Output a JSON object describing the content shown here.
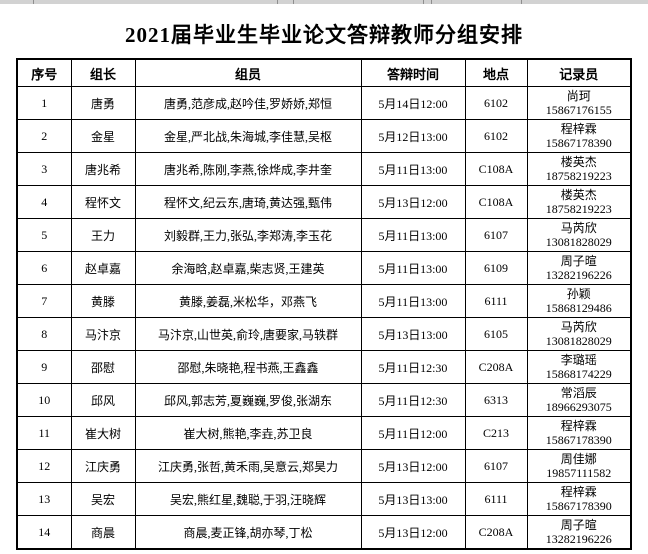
{
  "title": "2021届毕业生毕业论文答辩教师分组安排",
  "table": {
    "headers": [
      "序号",
      "组长",
      "组员",
      "答辩时间",
      "地点",
      "记录员"
    ],
    "rows": [
      {
        "no": "1",
        "leader": "唐勇",
        "members": "唐勇,范彦成,赵吟佳,罗娇娇,郑恒",
        "time": "5月14日12:00",
        "location": "6102",
        "recorder_name": "尚珂",
        "recorder_phone": "15867176155"
      },
      {
        "no": "2",
        "leader": "金星",
        "members": "金星,严北战,朱海城,李佳慧,吴枢",
        "time": "5月12日13:00",
        "location": "6102",
        "recorder_name": "程梓霖",
        "recorder_phone": "15867178390"
      },
      {
        "no": "3",
        "leader": "唐兆希",
        "members": "唐兆希,陈刚,李燕,徐烨成,李井奎",
        "time": "5月11日13:00",
        "location": "C108A",
        "recorder_name": "楼英杰",
        "recorder_phone": "18758219223"
      },
      {
        "no": "4",
        "leader": "程怀文",
        "members": "程怀文,纪云东,唐琦,黄达强,甄伟",
        "time": "5月13日12:00",
        "location": "C108A",
        "recorder_name": "楼英杰",
        "recorder_phone": "18758219223"
      },
      {
        "no": "5",
        "leader": "王力",
        "members": "刘毅群,王力,张弘,李郑涛,李玉花",
        "time": "5月11日13:00",
        "location": "6107",
        "recorder_name": "马芮欣",
        "recorder_phone": "13081828029"
      },
      {
        "no": "6",
        "leader": "赵卓嘉",
        "members": "余海晗,赵卓嘉,柴志贤,王建英",
        "time": "5月11日13:00",
        "location": "6109",
        "recorder_name": "周子暄",
        "recorder_phone": "13282196226"
      },
      {
        "no": "7",
        "leader": "黄滕",
        "members": "黄滕,姜磊,米松华，邓燕飞",
        "time": "5月11日13:00",
        "location": "6111",
        "recorder_name": "孙颖",
        "recorder_phone": "15868129486"
      },
      {
        "no": "8",
        "leader": "马汴京",
        "members": "马汴京,山世英,俞玲,唐要家,马轶群",
        "time": "5月13日13:00",
        "location": "6105",
        "recorder_name": "马芮欣",
        "recorder_phone": "13081828029"
      },
      {
        "no": "9",
        "leader": "邵慰",
        "members": "邵慰,朱晓艳,程书燕,王鑫鑫",
        "time": "5月11日12:30",
        "location": "C208A",
        "recorder_name": "李璐瑶",
        "recorder_phone": "15868174229"
      },
      {
        "no": "10",
        "leader": "邱风",
        "members": "邱风,郭志芳,夏巍巍,罗俊,张湖东",
        "time": "5月11日12:30",
        "location": "6313",
        "recorder_name": "常滔辰",
        "recorder_phone": "18966293075"
      },
      {
        "no": "11",
        "leader": "崔大树",
        "members": "崔大树,熊艳,李垚,苏卫良",
        "time": "5月11日12:00",
        "location": "C213",
        "recorder_name": "程梓霖",
        "recorder_phone": "15867178390"
      },
      {
        "no": "12",
        "leader": "江庆勇",
        "members": "江庆勇,张哲,黄禾雨,吴意云,郑昊力",
        "time": "5月13日12:00",
        "location": "6107",
        "recorder_name": "周佳娜",
        "recorder_phone": "19857111582"
      },
      {
        "no": "13",
        "leader": "吴宏",
        "members": "吴宏,熊红星,魏聪,于羽,汪晓辉",
        "time": "5月13日13:00",
        "location": "6111",
        "recorder_name": "程梓霖",
        "recorder_phone": "15867178390"
      },
      {
        "no": "14",
        "leader": "商晨",
        "members": "商晨,麦正锋,胡亦琴,丁松",
        "time": "5月13日12:00",
        "location": "C208A",
        "recorder_name": "周子暄",
        "recorder_phone": "13282196226"
      }
    ]
  }
}
